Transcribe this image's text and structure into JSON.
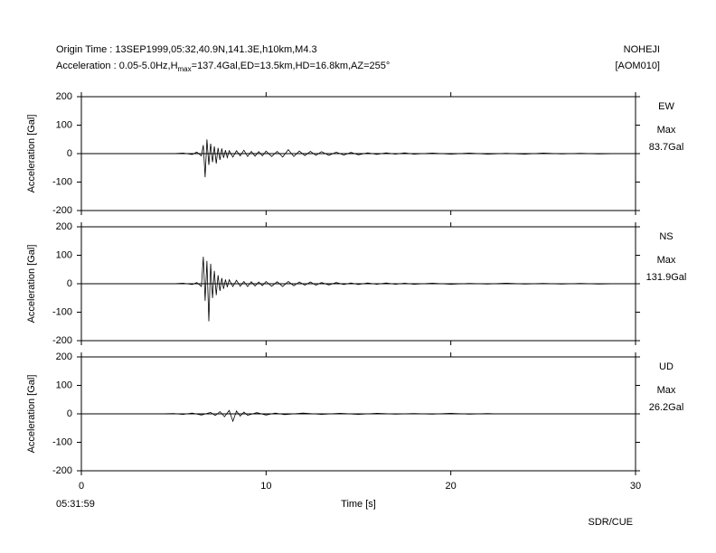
{
  "header": {
    "origin": "Origin Time : 13SEP1999,05:32,40.9N,141.3E,h10km,M4.3",
    "acc_prefix": "Acceleration : 0.05-5.0Hz,H",
    "acc_sub": "max",
    "acc_suffix": "=137.4Gal,ED=13.5km,HD=16.8km,AZ=255°",
    "station": "NOHEJI",
    "code": "[AOM010]"
  },
  "footer": {
    "start_time": "05:31:59",
    "credit": "SDR/CUE"
  },
  "chart_data": [
    {
      "type": "line",
      "title": "EW",
      "max_label": "Max",
      "max_value": "83.7Gal",
      "ylabel": "Acceleration [Gal]",
      "xlim": [
        0,
        30
      ],
      "xticks": [
        0,
        10,
        20,
        30
      ],
      "ylim": [
        -200,
        200
      ],
      "yticks": [
        200,
        100,
        0,
        -100,
        -200
      ],
      "x": [
        5,
        5.5,
        6,
        6.25,
        6.5,
        6.6,
        6.7,
        6.8,
        6.9,
        7.0,
        7.1,
        7.2,
        7.3,
        7.4,
        7.5,
        7.6,
        7.7,
        7.8,
        7.9,
        8.0,
        8.2,
        8.4,
        8.6,
        8.8,
        9.0,
        9.2,
        9.4,
        9.6,
        9.8,
        10.0,
        10.3,
        10.6,
        10.9,
        11.2,
        11.5,
        11.8,
        12.1,
        12.4,
        12.7,
        13.0,
        13.4,
        13.8,
        14.2,
        14.6,
        15.0,
        15.5,
        16,
        16.5,
        17,
        17.5,
        18,
        19,
        20,
        21,
        22,
        23,
        24,
        25,
        26,
        27,
        28,
        29
      ],
      "series": [
        {
          "name": "EW",
          "color": "#000000",
          "values": [
            0,
            2,
            -3,
            5,
            -8,
            30,
            -83,
            50,
            -40,
            35,
            -30,
            25,
            -35,
            20,
            -22,
            18,
            -15,
            12,
            -14,
            10,
            -12,
            10,
            -8,
            12,
            -10,
            8,
            -9,
            7,
            -8,
            9,
            -10,
            8,
            -12,
            14,
            -10,
            9,
            -7,
            8,
            -6,
            7,
            -6,
            5,
            -5,
            4,
            -4,
            3,
            -3,
            3,
            -2,
            3,
            -2,
            2,
            -2,
            2,
            -2,
            1,
            -2,
            2,
            -1,
            1,
            -1,
            0
          ]
        }
      ]
    },
    {
      "type": "line",
      "title": "NS",
      "max_label": "Max",
      "max_value": "131.9Gal",
      "ylabel": "Acceleration [Gal]",
      "xlim": [
        0,
        30
      ],
      "xticks": [
        0,
        10,
        20,
        30
      ],
      "ylim": [
        -200,
        200
      ],
      "yticks": [
        200,
        100,
        0,
        -100,
        -200
      ],
      "x": [
        5,
        5.5,
        6,
        6.25,
        6.5,
        6.6,
        6.7,
        6.8,
        6.9,
        7.0,
        7.1,
        7.2,
        7.3,
        7.4,
        7.5,
        7.6,
        7.7,
        7.8,
        7.9,
        8.0,
        8.2,
        8.4,
        8.6,
        8.8,
        9.0,
        9.2,
        9.4,
        9.6,
        9.8,
        10.0,
        10.3,
        10.6,
        10.9,
        11.2,
        11.5,
        11.8,
        12.1,
        12.4,
        12.7,
        13.0,
        13.4,
        13.8,
        14.2,
        14.6,
        15.0,
        15.5,
        16,
        16.5,
        17,
        17.5,
        18,
        19,
        20,
        21,
        22,
        23,
        24,
        25,
        26,
        27,
        28,
        29
      ],
      "series": [
        {
          "name": "NS",
          "color": "#000000",
          "values": [
            0,
            2,
            -3,
            4,
            -10,
            95,
            -60,
            80,
            -132,
            70,
            -50,
            45,
            -40,
            30,
            -25,
            20,
            -18,
            15,
            -12,
            14,
            -10,
            12,
            -9,
            8,
            -10,
            7,
            -8,
            6,
            -7,
            8,
            -9,
            7,
            -10,
            8,
            -7,
            6,
            -5,
            6,
            -5,
            4,
            -4,
            4,
            -3,
            3,
            -3,
            3,
            -2,
            3,
            -2,
            2,
            -2,
            2,
            -2,
            1,
            -1,
            2,
            -1,
            1,
            -1,
            1,
            -1,
            0
          ]
        }
      ]
    },
    {
      "type": "line",
      "title": "UD",
      "max_label": "Max",
      "max_value": "26.2Gal",
      "ylabel": "Acceleration [Gal]",
      "xlabel": "Time [s]",
      "xlim": [
        0,
        30
      ],
      "xticks": [
        0,
        10,
        20,
        30
      ],
      "ylim": [
        -200,
        200
      ],
      "yticks": [
        200,
        100,
        0,
        -100,
        -200
      ],
      "x": [
        4.2,
        5,
        5.5,
        6,
        6.5,
        7,
        7.25,
        7.5,
        7.75,
        8.0,
        8.2,
        8.4,
        8.6,
        8.8,
        9,
        9.5,
        10,
        10.5,
        11,
        12,
        13,
        14,
        15,
        16,
        17,
        18,
        19,
        20,
        21,
        22,
        22.5
      ],
      "series": [
        {
          "name": "UD",
          "color": "#000000",
          "values": [
            0,
            1,
            -2,
            3,
            -4,
            5,
            -6,
            8,
            -10,
            12,
            -26,
            10,
            -8,
            6,
            -5,
            4,
            -4,
            3,
            -3,
            3,
            -2,
            2,
            -2,
            2,
            -1,
            1,
            -1,
            2,
            -1,
            1,
            0
          ]
        }
      ]
    }
  ]
}
